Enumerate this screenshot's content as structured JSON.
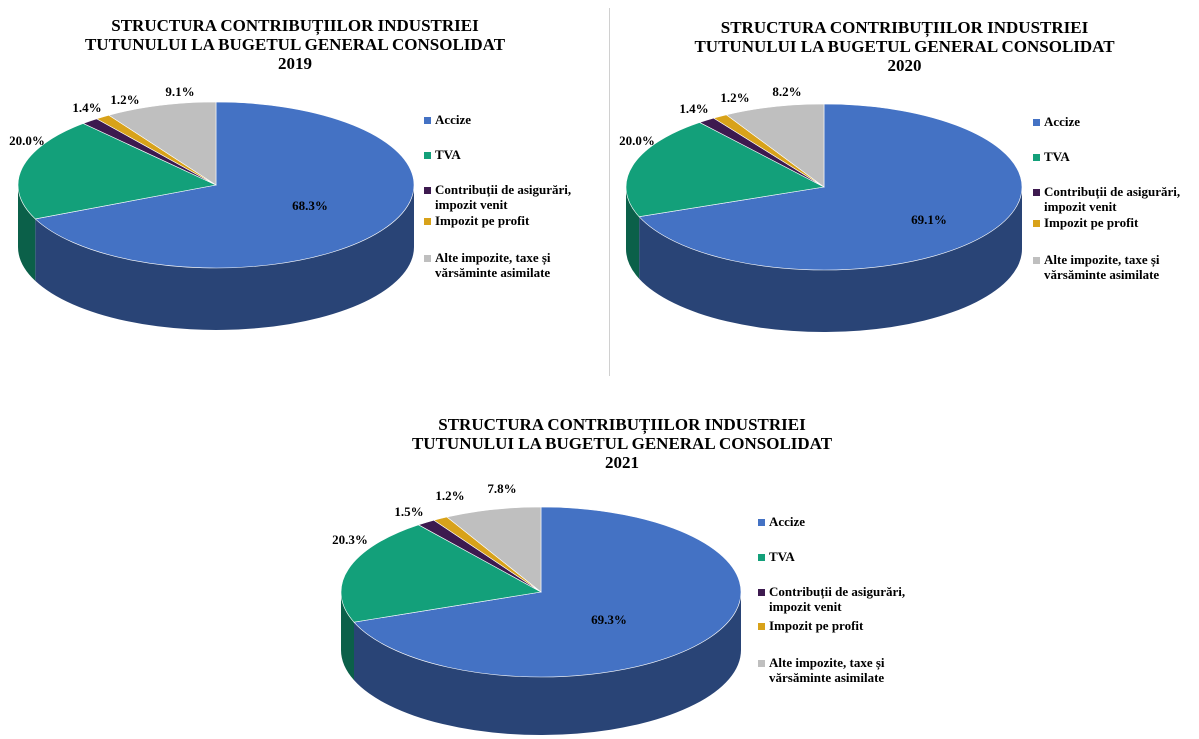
{
  "colors": {
    "Accize": "#4472C4",
    "TVA": "#13A07A",
    "Contributii": "#3D1A4F",
    "Impozit": "#D8A21A",
    "Alte": "#BFBFBF"
  },
  "legend_labels": [
    [
      "Accize"
    ],
    [
      "TVA"
    ],
    [
      "Contribuții de asigurări,",
      "impozit venit"
    ],
    [
      "Impozit pe profit"
    ],
    [
      "Alte impozite, taxe și",
      "vărsăminte asimilate"
    ]
  ],
  "chart_data": [
    {
      "type": "pie",
      "title_lines": [
        "STRUCTURA CONTRIBUȚIILOR INDUSTRIEI",
        "TUTUNULUI LA BUGETUL GENERAL CONSOLIDAT",
        "2019"
      ],
      "legend_position": "right",
      "categories": [
        "Accize",
        "TVA",
        "Contribuții de asigurări, impozit venit",
        "Impozit pe profit",
        "Alte impozite, taxe și vărsăminte asimilate"
      ],
      "values": [
        68.3,
        20.0,
        1.4,
        1.2,
        9.1
      ],
      "labels": [
        "68.3%",
        "20.0%",
        "1.4%",
        "1.2%",
        "9.1%"
      ]
    },
    {
      "type": "pie",
      "title_lines": [
        "STRUCTURA CONTRIBUȚIILOR INDUSTRIEI",
        "TUTUNULUI LA BUGETUL GENERAL CONSOLIDAT",
        "2020"
      ],
      "legend_position": "right",
      "categories": [
        "Accize",
        "TVA",
        "Contribuții de asigurări, impozit venit",
        "Impozit pe profit",
        "Alte impozite, taxe și vărsăminte asimilate"
      ],
      "values": [
        69.1,
        20.0,
        1.4,
        1.2,
        8.2
      ],
      "labels": [
        "69.1%",
        "20.0%",
        "1.4%",
        "1.2%",
        "8.2%"
      ]
    },
    {
      "type": "pie",
      "title_lines": [
        "STRUCTURA CONTRIBUȚIILOR INDUSTRIEI",
        "TUTUNULUI LA BUGETUL GENERAL CONSOLIDAT",
        "2021"
      ],
      "legend_position": "right",
      "categories": [
        "Accize",
        "TVA",
        "Contribuții de asigurări, impozit venit",
        "Impozit pe profit",
        "Alte impozite, taxe și vărsăminte asimilate"
      ],
      "values": [
        69.3,
        20.3,
        1.5,
        1.2,
        7.8
      ],
      "labels": [
        "69.3%",
        "20.3%",
        "1.5%",
        "1.2%",
        "7.8%"
      ]
    }
  ]
}
